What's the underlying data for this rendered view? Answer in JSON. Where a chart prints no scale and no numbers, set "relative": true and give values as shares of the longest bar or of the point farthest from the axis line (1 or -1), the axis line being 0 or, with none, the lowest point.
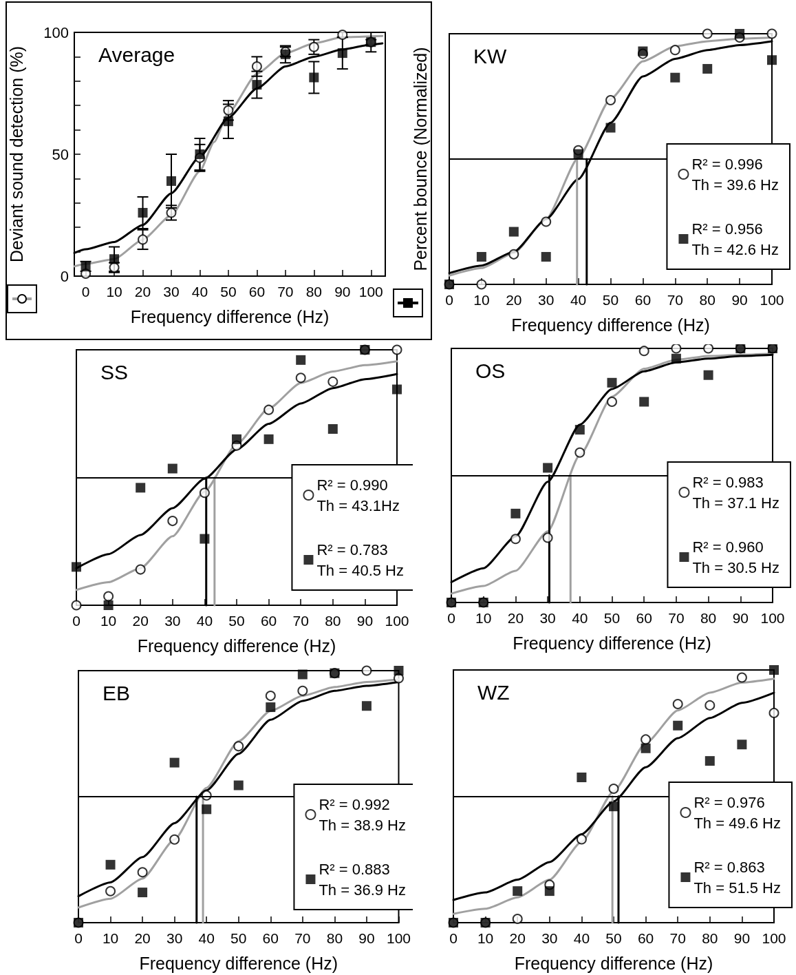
{
  "chart_data": [
    {
      "type": "scatter",
      "title": "Average",
      "xlabel": "Frequency difference (Hz)",
      "ylabel": "Deviant sound detection (%)",
      "xlim": [
        -4,
        105
      ],
      "xticks": [
        0,
        10,
        20,
        30,
        40,
        50,
        60,
        70,
        80,
        90,
        100
      ],
      "ylim": [
        0,
        100
      ],
      "yticks": [
        0,
        {
          "value": 10,
          "label": null
        },
        {
          "value": 20,
          "label": null
        },
        {
          "value": 30,
          "label": null
        },
        {
          "value": 40,
          "label": null
        },
        50,
        {
          "value": 60,
          "label": null
        },
        {
          "value": 70,
          "label": null
        },
        {
          "value": 80,
          "label": null
        },
        {
          "value": 90,
          "label": null
        },
        100
      ],
      "legend": false,
      "series": [
        {
          "type": "line",
          "marker": "none",
          "color": "#a0a0a0",
          "x": [
            -4,
            0,
            10,
            20,
            30,
            40,
            45,
            50,
            60,
            70,
            80,
            90,
            104
          ],
          "values": [
            4,
            5,
            7,
            15,
            25,
            43,
            55,
            67,
            83,
            91.5,
            95.5,
            98,
            98.5
          ]
        },
        {
          "type": "line",
          "marker": "none",
          "color": "#000000",
          "x": [
            -4,
            0,
            10,
            20,
            30,
            40,
            50,
            60,
            70,
            80,
            90,
            100,
            104
          ],
          "values": [
            9.5,
            11,
            14,
            21,
            34,
            49,
            65,
            77,
            86,
            90,
            93,
            95,
            95.5
          ]
        },
        {
          "type": "scatter",
          "marker": "circle",
          "color": "#000000",
          "x": [
            0,
            10,
            20,
            30,
            40,
            50,
            60,
            70,
            80,
            90,
            100
          ],
          "values": [
            1,
            3.5,
            15,
            26,
            48.5,
            68,
            86,
            92,
            94,
            99,
            96
          ],
          "errors": [
            null,
            2,
            4,
            3,
            5.5,
            4,
            4,
            2,
            3,
            1,
            1
          ]
        },
        {
          "type": "scatter",
          "marker": "square",
          "color": "#000000",
          "x": [
            0,
            10,
            20,
            30,
            40,
            50,
            60,
            70,
            80,
            90,
            100
          ],
          "values": [
            4,
            7,
            26,
            39,
            50,
            63.5,
            78.5,
            91,
            81.5,
            91.5,
            96
          ],
          "errors": [
            2,
            5,
            6.5,
            11,
            6.5,
            7,
            5.5,
            3.5,
            6.5,
            6.5,
            4
          ]
        }
      ]
    },
    {
      "type": "scatter",
      "relative": true,
      "title": "KW",
      "xlabel": "Frequency difference (Hz)",
      "ylabel": "Percent bounce (Normalized)",
      "xlim": [
        0,
        100
      ],
      "xticks": [
        0,
        10,
        20,
        30,
        40,
        50,
        60,
        70,
        80,
        90,
        100
      ],
      "legend": "bottom right",
      "ref_lines": [
        {
          "axis": "y",
          "value": 0.5,
          "color": "#000000"
        }
      ],
      "series": [
        {
          "type": "line",
          "marker": "none",
          "color": "#a0a0a0",
          "x": [
            0,
            10,
            20,
            30,
            40,
            50,
            60,
            70,
            80,
            90,
            100
          ],
          "values": [
            0.035,
            0.065,
            0.125,
            0.26,
            0.505,
            0.74,
            0.89,
            0.95,
            0.97,
            0.98,
            0.985
          ]
        },
        {
          "type": "line",
          "marker": "none",
          "color": "#000000",
          "x": [
            0,
            10,
            20,
            30,
            40,
            50,
            60,
            70,
            80,
            90,
            100
          ],
          "values": [
            0.045,
            0.075,
            0.13,
            0.26,
            0.42,
            0.645,
            0.83,
            0.9,
            0.935,
            0.955,
            0.97
          ]
        },
        {
          "type": "line",
          "marker": "none",
          "color": "#a0a0a0",
          "x": [
            39.6,
            39.6
          ],
          "values": [
            0,
            0.5
          ]
        },
        {
          "type": "line",
          "marker": "none",
          "color": "#000000",
          "x": [
            42.6,
            42.6
          ],
          "values": [
            0,
            0.5
          ]
        },
        {
          "type": "scatter",
          "marker": "circle",
          "color": "#000000",
          "name": "R² = 0.996\nTh = 39.6 Hz",
          "x": [
            0,
            10,
            20,
            30,
            40,
            50,
            60,
            70,
            80,
            90,
            100
          ],
          "values": [
            0,
            0,
            0.12,
            0.25,
            0.535,
            0.735,
            0.92,
            0.935,
            1,
            0.985,
            1
          ]
        },
        {
          "type": "scatter",
          "marker": "square",
          "color": "#000000",
          "name": "R² = 0.956\nTh = 42.6 Hz",
          "x": [
            0,
            10,
            20,
            30,
            40,
            50,
            60,
            70,
            80,
            90,
            100
          ],
          "values": [
            0,
            0.11,
            0.21,
            0.11,
            0.52,
            0.625,
            0.93,
            0.825,
            0.86,
            1,
            0.895
          ]
        }
      ]
    },
    {
      "type": "scatter",
      "relative": true,
      "title": "SS",
      "xlabel": "Frequency difference (Hz)",
      "xlim": [
        0,
        100
      ],
      "xticks": [
        0,
        10,
        20,
        30,
        40,
        50,
        60,
        70,
        80,
        90,
        100
      ],
      "legend": "bottom right",
      "ref_lines": [
        {
          "axis": "y",
          "value": 0.5,
          "color": "#000000"
        }
      ],
      "series": [
        {
          "type": "line",
          "marker": "none",
          "color": "#a0a0a0",
          "x": [
            0,
            10,
            20,
            30,
            40,
            50,
            60,
            70,
            80,
            90,
            100
          ],
          "values": [
            0.06,
            0.09,
            0.145,
            0.27,
            0.445,
            0.63,
            0.77,
            0.87,
            0.915,
            0.94,
            0.955
          ]
        },
        {
          "type": "line",
          "marker": "none",
          "color": "#000000",
          "x": [
            0,
            10,
            20,
            30,
            40,
            50,
            60,
            70,
            80,
            90,
            100
          ],
          "values": [
            0.145,
            0.2,
            0.275,
            0.38,
            0.495,
            0.61,
            0.71,
            0.79,
            0.85,
            0.885,
            0.905
          ]
        },
        {
          "type": "line",
          "marker": "none",
          "color": "#a0a0a0",
          "x": [
            43.1,
            43.1
          ],
          "values": [
            0,
            0.5
          ]
        },
        {
          "type": "line",
          "marker": "none",
          "color": "#000000",
          "x": [
            40.5,
            40.5
          ],
          "values": [
            0,
            0.5
          ]
        },
        {
          "type": "scatter",
          "marker": "circle",
          "color": "#000000",
          "name": "R² = 0.990\nTh = 43.1Hz",
          "x": [
            0,
            10,
            20,
            30,
            40,
            50,
            60,
            70,
            80,
            90,
            100
          ],
          "values": [
            0,
            0.035,
            0.14,
            0.33,
            0.44,
            0.625,
            0.765,
            0.89,
            0.875,
            1,
            1
          ]
        },
        {
          "type": "scatter",
          "marker": "square",
          "color": "#000000",
          "name": "R² = 0.783\nTh = 40.5 Hz",
          "x": [
            0,
            10,
            20,
            30,
            40,
            50,
            60,
            70,
            80,
            90,
            100
          ],
          "values": [
            0.15,
            0,
            0.46,
            0.535,
            0.26,
            0.65,
            0.65,
            0.96,
            0.69,
            1,
            0.845
          ]
        }
      ]
    },
    {
      "type": "scatter",
      "relative": true,
      "title": "OS",
      "xlabel": "Frequency difference (Hz)",
      "xlim": [
        0,
        100
      ],
      "xticks": [
        0,
        10,
        20,
        30,
        40,
        50,
        60,
        70,
        80,
        90,
        100
      ],
      "legend": "bottom right",
      "ref_lines": [
        {
          "axis": "y",
          "value": 0.5,
          "color": "#000000"
        }
      ],
      "series": [
        {
          "type": "line",
          "marker": "none",
          "color": "#a0a0a0",
          "x": [
            0,
            10,
            20,
            30,
            40,
            50,
            60,
            70,
            80,
            90,
            100
          ],
          "values": [
            0.035,
            0.065,
            0.125,
            0.28,
            0.58,
            0.81,
            0.92,
            0.955,
            0.97,
            0.975,
            0.98
          ]
        },
        {
          "type": "line",
          "marker": "none",
          "color": "#000000",
          "x": [
            0,
            10,
            20,
            30,
            40,
            50,
            60,
            70,
            80,
            90,
            100
          ],
          "values": [
            0.08,
            0.135,
            0.26,
            0.475,
            0.7,
            0.84,
            0.91,
            0.945,
            0.96,
            0.97,
            0.975
          ]
        },
        {
          "type": "line",
          "marker": "none",
          "color": "#a0a0a0",
          "x": [
            37.1,
            37.1
          ],
          "values": [
            0,
            0.5
          ]
        },
        {
          "type": "line",
          "marker": "none",
          "color": "#000000",
          "x": [
            30.5,
            30.5
          ],
          "values": [
            0,
            0.5
          ]
        },
        {
          "type": "scatter",
          "marker": "circle",
          "color": "#000000",
          "name": "R² = 0.983\nTh = 37.1 Hz",
          "x": [
            0,
            10,
            20,
            30,
            40,
            50,
            60,
            70,
            80,
            90,
            100
          ],
          "values": [
            0,
            0,
            0.25,
            0.255,
            0.59,
            0.79,
            0.99,
            1,
            1,
            1,
            1
          ]
        },
        {
          "type": "scatter",
          "marker": "square",
          "color": "#000000",
          "name": "R² = 0.960\nTh = 30.5 Hz",
          "x": [
            0,
            10,
            20,
            30,
            40,
            50,
            60,
            70,
            80,
            90,
            100
          ],
          "values": [
            0,
            0,
            0.35,
            0.53,
            0.68,
            0.865,
            0.79,
            0.96,
            0.895,
            1,
            1
          ]
        }
      ]
    },
    {
      "type": "scatter",
      "relative": true,
      "title": "EB",
      "xlabel": "Frequency difference (Hz)",
      "xlim": [
        0,
        100
      ],
      "xticks": [
        0,
        10,
        20,
        30,
        40,
        50,
        60,
        70,
        80,
        90,
        100
      ],
      "legend": "bottom right",
      "ref_lines": [
        {
          "axis": "y",
          "value": 0.5,
          "color": "#000000"
        }
      ],
      "series": [
        {
          "type": "line",
          "marker": "none",
          "color": "#a0a0a0",
          "x": [
            0,
            10,
            20,
            30,
            40,
            50,
            60,
            70,
            80,
            90,
            100
          ],
          "values": [
            0.06,
            0.095,
            0.175,
            0.33,
            0.535,
            0.72,
            0.84,
            0.9,
            0.935,
            0.955,
            0.965
          ]
        },
        {
          "type": "line",
          "marker": "none",
          "color": "#000000",
          "x": [
            0,
            10,
            20,
            30,
            40,
            50,
            60,
            70,
            80,
            90,
            100
          ],
          "values": [
            0.105,
            0.16,
            0.26,
            0.395,
            0.525,
            0.67,
            0.805,
            0.88,
            0.92,
            0.94,
            0.955
          ]
        },
        {
          "type": "line",
          "marker": "none",
          "color": "#a0a0a0",
          "x": [
            38.9,
            38.9
          ],
          "values": [
            0,
            0.5
          ]
        },
        {
          "type": "line",
          "marker": "none",
          "color": "#000000",
          "x": [
            36.9,
            36.9
          ],
          "values": [
            0,
            0.5
          ]
        },
        {
          "type": "scatter",
          "marker": "circle",
          "color": "#000000",
          "name": "R² = 0.992\nTh = 38.9 Hz",
          "x": [
            0,
            10,
            20,
            30,
            40,
            50,
            60,
            70,
            80,
            90,
            100
          ],
          "values": [
            0,
            0.125,
            0.2,
            0.33,
            0.505,
            0.7,
            0.9,
            0.92,
            0.99,
            1,
            0.97
          ]
        },
        {
          "type": "scatter",
          "marker": "square",
          "color": "#000000",
          "name": "R² = 0.883\nTh = 36.9 Hz",
          "x": [
            0,
            10,
            20,
            30,
            40,
            50,
            60,
            70,
            80,
            90,
            100
          ],
          "values": [
            0,
            0.23,
            0.12,
            0.635,
            0.45,
            0.545,
            0.855,
            0.985,
            0.99,
            0.86,
            1
          ]
        }
      ]
    },
    {
      "type": "scatter",
      "relative": true,
      "title": "WZ",
      "xlabel": "Frequency difference (Hz)",
      "xlim": [
        0,
        100
      ],
      "xticks": [
        0,
        10,
        20,
        30,
        40,
        50,
        60,
        70,
        80,
        90,
        100
      ],
      "legend": "bottom right",
      "ref_lines": [
        {
          "axis": "y",
          "value": 0.5,
          "color": "#000000"
        }
      ],
      "series": [
        {
          "type": "line",
          "marker": "none",
          "color": "#a0a0a0",
          "x": [
            0,
            10,
            20,
            30,
            40,
            50,
            60,
            70,
            80,
            90,
            100
          ],
          "values": [
            0.035,
            0.055,
            0.1,
            0.17,
            0.32,
            0.52,
            0.71,
            0.84,
            0.91,
            0.95,
            0.965
          ]
        },
        {
          "type": "line",
          "marker": "none",
          "color": "#000000",
          "x": [
            0,
            10,
            20,
            30,
            40,
            50,
            60,
            70,
            80,
            90,
            100
          ],
          "values": [
            0.09,
            0.12,
            0.17,
            0.24,
            0.35,
            0.48,
            0.615,
            0.73,
            0.81,
            0.87,
            0.91
          ]
        },
        {
          "type": "line",
          "marker": "none",
          "color": "#a0a0a0",
          "x": [
            49.6,
            49.6
          ],
          "values": [
            0,
            0.5
          ]
        },
        {
          "type": "line",
          "marker": "none",
          "color": "#000000",
          "x": [
            51.5,
            51.5
          ],
          "values": [
            0,
            0.5
          ]
        },
        {
          "type": "scatter",
          "marker": "circle",
          "color": "#000000",
          "name": "R² = 0.976\nTh = 49.6 Hz",
          "x": [
            0,
            10,
            20,
            30,
            40,
            50,
            60,
            70,
            80,
            90,
            100
          ],
          "values": [
            0,
            0,
            0.015,
            0.15,
            0.33,
            0.53,
            0.725,
            0.865,
            0.86,
            0.97,
            0.83
          ]
        },
        {
          "type": "scatter",
          "marker": "square",
          "color": "#000000",
          "name": "R² = 0.863\nTh = 51.5 Hz",
          "x": [
            0,
            10,
            20,
            30,
            40,
            50,
            60,
            70,
            80,
            90,
            100
          ],
          "values": [
            0,
            0,
            0.125,
            0.125,
            0.575,
            0.46,
            0.69,
            0.78,
            0.64,
            0.705,
            1
          ]
        }
      ]
    }
  ]
}
